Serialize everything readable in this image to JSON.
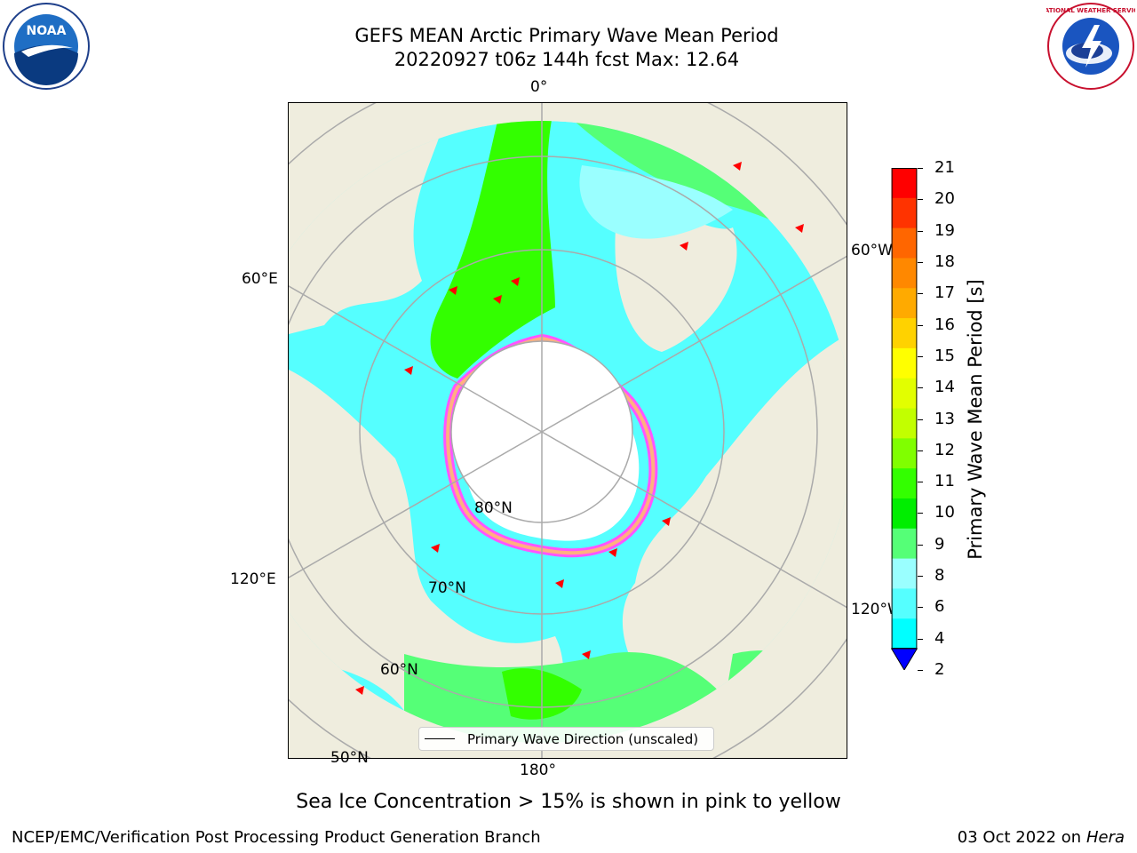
{
  "header": {
    "title_line1": "GEFS MEAN Arctic Primary Wave Mean Period",
    "title_line2": "20220927 t06z 144h fcst   Max: 12.64"
  },
  "logos": {
    "left": "NOAA",
    "right": "NATIONAL WEATHER SERVICE"
  },
  "map": {
    "longitude_labels": [
      "0°",
      "60°W",
      "120°W",
      "180°",
      "120°E",
      "60°E"
    ],
    "latitude_labels": [
      "80°N",
      "70°N",
      "60°N",
      "50°N"
    ],
    "legend_label": "Primary Wave Direction (unscaled)"
  },
  "colorbar": {
    "title": "Primary Wave Mean Period [s]",
    "ticks": [
      "21",
      "20",
      "19",
      "18",
      "17",
      "16",
      "15",
      "14",
      "13",
      "12",
      "11",
      "10",
      "9",
      "8",
      "6",
      "4",
      "2"
    ],
    "colors": [
      "#ff0000",
      "#ff3300",
      "#ff6600",
      "#ff8800",
      "#ffaa00",
      "#ffd200",
      "#ffff00",
      "#e2ff00",
      "#c2ff00",
      "#80ff00",
      "#33ff00",
      "#00ee00",
      "#55ff77",
      "#9affff",
      "#55ffff",
      "#00ffff",
      "#007dff",
      "#0000ff"
    ],
    "extend_color": "#0000ff"
  },
  "footer": {
    "note": "Sea Ice Concentration > 15% is shown in pink to yellow",
    "left": "NCEP/EMC/Verification Post Processing Product Generation Branch",
    "right_date": "03 Oct 2022 on ",
    "right_host": "Hera"
  }
}
